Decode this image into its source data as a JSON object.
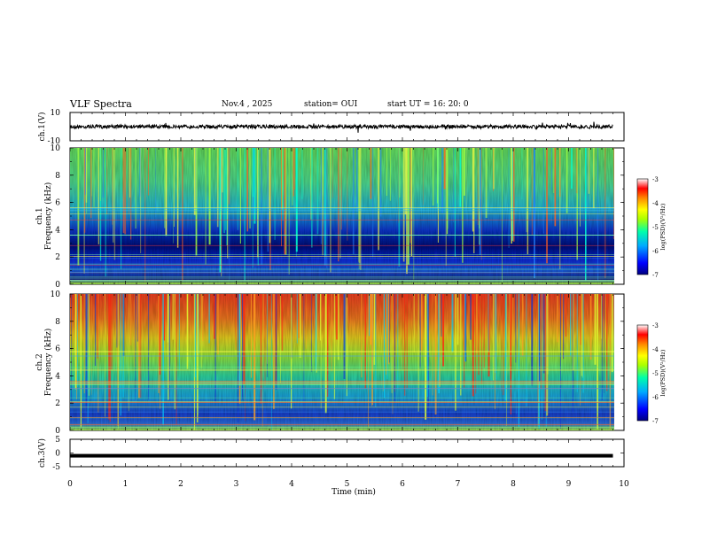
{
  "header": {
    "title": "VLF Spectra",
    "date": "Nov.4 , 2025",
    "station": "station= OUI",
    "start_time": "start  UT =  16: 20: 0"
  },
  "chart_data": [
    {
      "type": "line",
      "panel": "ch1-waveform",
      "ylabel": "ch.1(V)",
      "ylim": [
        -10,
        10
      ],
      "yticks": [
        "10",
        "-10"
      ],
      "x": [
        0,
        1,
        2,
        3,
        4,
        5,
        6,
        7,
        8,
        9,
        9.8
      ],
      "series": [
        {
          "values": [
            0,
            0,
            0,
            0,
            0,
            0,
            0,
            0,
            0,
            0,
            0
          ]
        }
      ]
    },
    {
      "type": "heatmap",
      "panel": "ch1-spectrogram",
      "ylabel_top": "ch.1",
      "ylabel": "Frequency (kHz)",
      "ylim": [
        0,
        10
      ],
      "yticks": [
        "0",
        "2",
        "4",
        "6",
        "8",
        "10"
      ],
      "xlim": [
        0,
        10
      ],
      "colorbar": {
        "label": "log(PSD)(V²/Hz)",
        "ticks": [
          "-3",
          "-4",
          "-5",
          "-6",
          "-7"
        ],
        "range": [
          -7,
          -3
        ]
      }
    },
    {
      "type": "heatmap",
      "panel": "ch2-spectrogram",
      "ylabel_top": "ch.2",
      "ylabel": "Frequency (kHz)",
      "ylim": [
        0,
        10
      ],
      "yticks": [
        "0",
        "2",
        "4",
        "6",
        "8",
        "10"
      ],
      "xlim": [
        0,
        10
      ],
      "colorbar": {
        "label": "log(PSD)(V²/Hz)",
        "ticks": [
          "-3",
          "-4",
          "-5",
          "-6",
          "-7"
        ],
        "range": [
          -7,
          -3
        ]
      }
    },
    {
      "type": "line",
      "panel": "ch3-waveform",
      "ylabel": "ch.3(V)",
      "ylim": [
        -5,
        5
      ],
      "yticks": [
        "5",
        "0",
        "-5"
      ],
      "x": [
        0,
        9.8
      ],
      "series": [
        {
          "values": [
            -1,
            -1
          ]
        }
      ]
    }
  ],
  "x_axis": {
    "label": "Time (min)",
    "ticks": [
      "0",
      "1",
      "2",
      "3",
      "4",
      "5",
      "6",
      "7",
      "8",
      "9",
      "10"
    ],
    "range": [
      0,
      10
    ]
  },
  "colors": {
    "colormap": [
      "#000080",
      "#0000ff",
      "#00aaff",
      "#00ffaa",
      "#aaff00",
      "#ffff00",
      "#ff8800",
      "#ff0000",
      "#ffffff"
    ]
  }
}
